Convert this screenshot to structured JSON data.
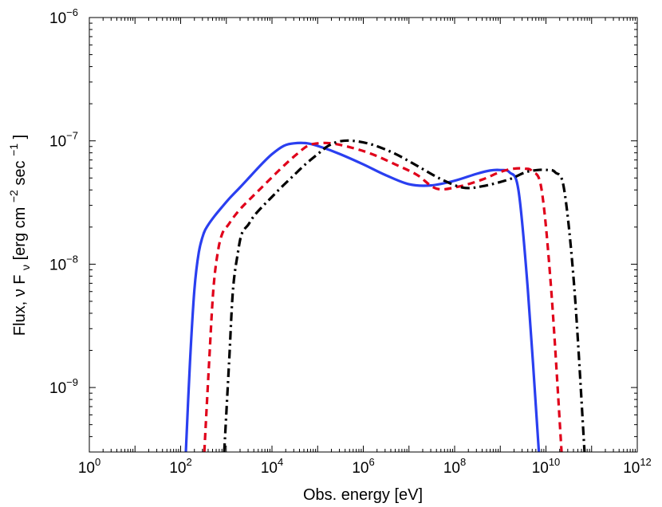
{
  "chart_data": {
    "type": "line",
    "title": "",
    "xlabel": "Obs. energy [eV]",
    "ylabel": {
      "prefix": "Flux, ",
      "nu": "ν",
      "f": " F",
      "sub": "ν",
      "units_start": " [erg cm",
      "exp1": "−2",
      "units_mid": " sec",
      "exp2": "−1",
      "units_end": "]"
    },
    "x_scale": "log",
    "y_scale": "log",
    "xlim": [
      1,
      1000000000000
    ],
    "ylim": [
      3e-10,
      1e-06
    ],
    "x_ticks": [
      {
        "value": 1,
        "base": "10",
        "exp": "0"
      },
      {
        "value": 100,
        "base": "10",
        "exp": "2"
      },
      {
        "value": 10000,
        "base": "10",
        "exp": "4"
      },
      {
        "value": 1000000,
        "base": "10",
        "exp": "6"
      },
      {
        "value": 100000000,
        "base": "10",
        "exp": "8"
      },
      {
        "value": 10000000000,
        "base": "10",
        "exp": "10"
      },
      {
        "value": 1000000000000,
        "base": "10",
        "exp": "12"
      }
    ],
    "y_ticks": [
      {
        "value": 1e-09,
        "base": "10",
        "exp": "−9"
      },
      {
        "value": 1e-08,
        "base": "10",
        "exp": "−8"
      },
      {
        "value": 1e-07,
        "base": "10",
        "exp": "−7"
      },
      {
        "value": 1e-06,
        "base": "10",
        "exp": "−6"
      }
    ],
    "series": [
      {
        "name": "solid-blue",
        "color": "#2a3ff0",
        "style": "solid",
        "x": [
          130,
          160,
          200,
          250,
          320,
          400,
          550,
          800,
          1200,
          2000,
          3500,
          6000,
          10000,
          18000,
          30000,
          60000,
          120000,
          300000,
          1000000,
          3000000,
          10000000,
          30000000,
          100000000,
          300000000,
          600000000,
          1000000000,
          1600000000,
          2500000000,
          4000000000,
          7000000000
        ],
        "y": [
          3e-10,
          1.6e-09,
          6.2e-09,
          1.25e-08,
          1.78e-08,
          2.08e-08,
          2.45e-08,
          2.9e-08,
          3.45e-08,
          4.2e-08,
          5.25e-08,
          6.5e-08,
          7.8e-08,
          9.1e-08,
          9.55e-08,
          9.55e-08,
          8.9e-08,
          7.85e-08,
          6.45e-08,
          5.3e-08,
          4.45e-08,
          4.35e-08,
          4.75e-08,
          5.4e-08,
          5.75e-08,
          5.8e-08,
          5.55e-08,
          3.98e-08,
          6.3e-09,
          3e-10
        ]
      },
      {
        "name": "dashed-red",
        "color": "#e0001a",
        "style": "dashed",
        "x": [
          330,
          420,
          520,
          650,
          820,
          1100,
          1500,
          2200,
          3500,
          6000,
          11000,
          20000,
          35000,
          60000,
          100000,
          200000,
          500000,
          1500000,
          5000000,
          15000000,
          40000000,
          120000000,
          400000000,
          1000000000,
          2000000000,
          3500000000,
          5000000000,
          8000000000,
          13000000000,
          22000000000
        ],
        "y": [
          3e-10,
          1.6e-09,
          6.2e-09,
          1.25e-08,
          1.78e-08,
          2.08e-08,
          2.45e-08,
          2.9e-08,
          3.45e-08,
          4.2e-08,
          5.25e-08,
          6.5e-08,
          7.8e-08,
          9.1e-08,
          9.55e-08,
          9.55e-08,
          8.9e-08,
          7.85e-08,
          6.45e-08,
          5.3e-08,
          4.1e-08,
          4.25e-08,
          4.85e-08,
          5.6e-08,
          5.95e-08,
          5.95e-08,
          5.65e-08,
          4.05e-08,
          6.3e-09,
          3e-10
        ]
      },
      {
        "name": "dashdot-black",
        "color": "#000000",
        "style": "dashdot",
        "x": [
          900,
          1150,
          1400,
          1800,
          2200,
          3000,
          4000,
          6000,
          9500,
          16000,
          30000,
          55000,
          100000,
          170000,
          300000,
          600000,
          1600000,
          5000000,
          16000000,
          50000000,
          150000000,
          400000000,
          1500000000,
          3500000000,
          6500000000,
          11000000000,
          16000000000,
          25000000000,
          42000000000,
          70000000000
        ],
        "y": [
          3e-10,
          1.6e-09,
          6.2e-09,
          1.25e-08,
          1.78e-08,
          2.08e-08,
          2.45e-08,
          2.9e-08,
          3.45e-08,
          4.2e-08,
          5.25e-08,
          6.5e-08,
          7.8e-08,
          9.1e-08,
          9.9e-08,
          1e-07,
          9.3e-08,
          7.85e-08,
          6.2e-08,
          4.9e-08,
          4.18e-08,
          4.28e-08,
          4.85e-08,
          5.55e-08,
          5.8e-08,
          5.8e-08,
          5.55e-08,
          4.05e-08,
          6.3e-09,
          3e-10
        ]
      }
    ]
  }
}
